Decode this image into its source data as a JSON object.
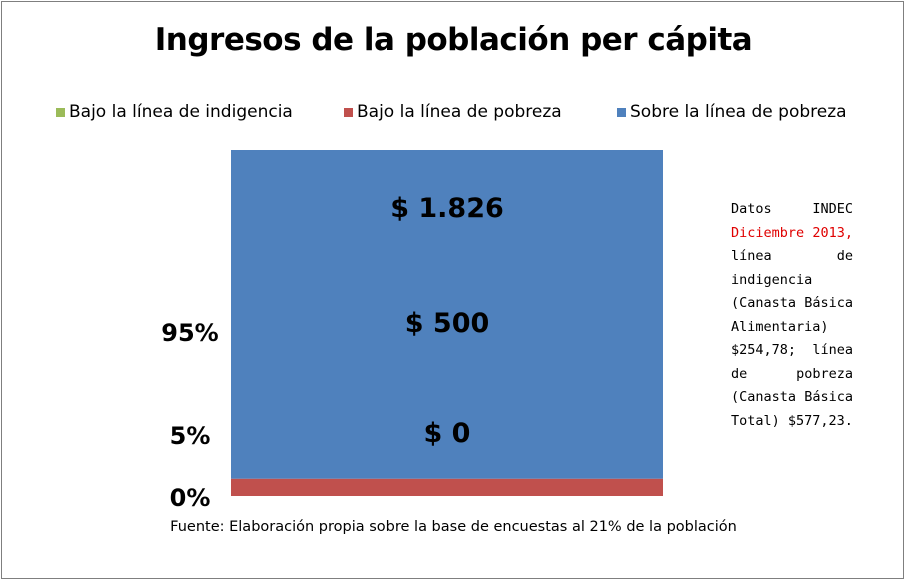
{
  "chart_data": {
    "type": "bar",
    "stacked": true,
    "title": "Ingresos de la población per cápita",
    "categories": [
      ""
    ],
    "series": [
      {
        "name": "Bajo la línea de indigencia",
        "values": [
          0
        ],
        "color": "#9bbb59"
      },
      {
        "name": "Bajo la línea de pobreza",
        "values": [
          5
        ],
        "color": "#c0504d"
      },
      {
        "name": "Sobre la línea de pobreza",
        "values": [
          95
        ],
        "color": "#4f81bd"
      }
    ],
    "ylim": [
      0,
      100
    ],
    "y_axis_labels": [
      "0%",
      "5%",
      "95%"
    ],
    "bar_labels": [
      "$ 0",
      "$ 500",
      "$ 1.826"
    ],
    "legend_position": "top",
    "grid": false
  },
  "note": {
    "line1": "Datos INDEC",
    "red": "Diciembre 2013,",
    "rest": "línea de indigencia (Canasta Básica Alimentaria) $254,78; línea de pobreza (Canasta Básica Total) $577,23."
  },
  "source": "Fuente: Elaboración propia sobre la base de encuestas al 21% de la población"
}
